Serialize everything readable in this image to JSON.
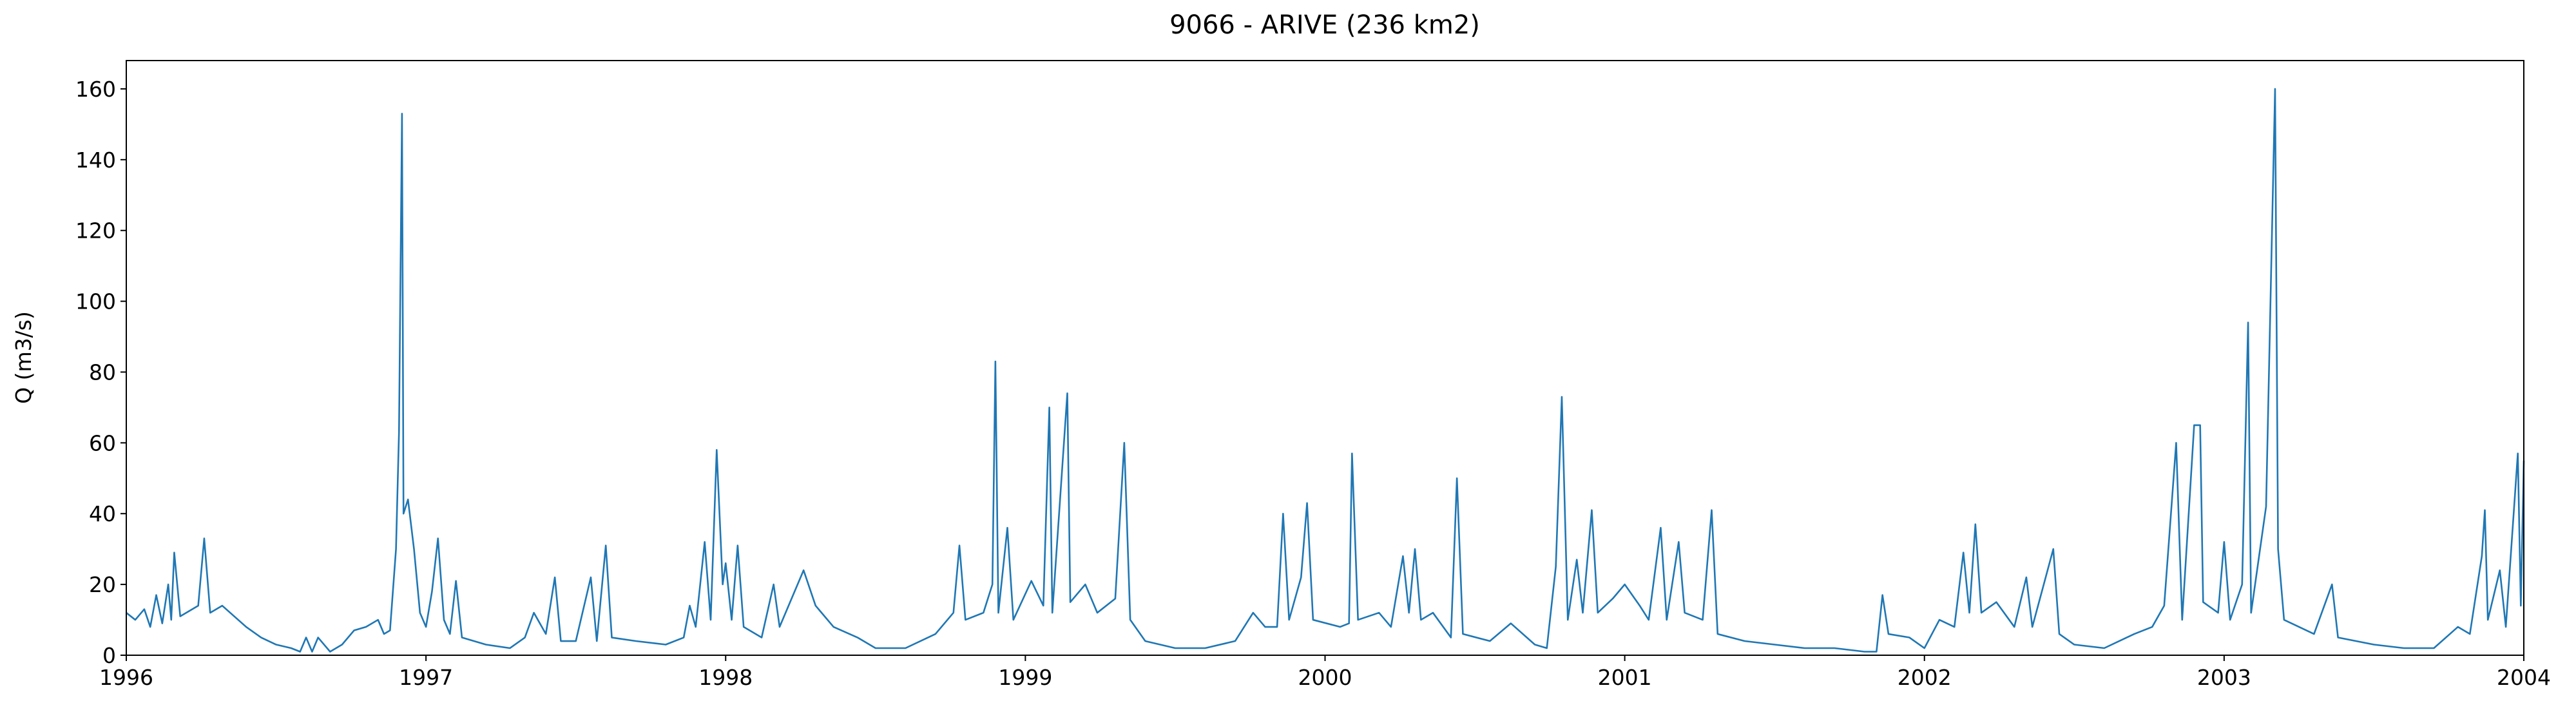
{
  "chart_data": {
    "type": "line",
    "title": "9066 - ARIVE (236 km2)",
    "y_label": "Q (m3/s)",
    "x": [
      1996.0,
      1996.03,
      1996.06,
      1996.08,
      1996.1,
      1996.12,
      1996.14,
      1996.15,
      1996.16,
      1996.18,
      1996.22,
      1996.24,
      1996.26,
      1996.28,
      1996.32,
      1996.36,
      1996.4,
      1996.45,
      1996.5,
      1996.55,
      1996.58,
      1996.6,
      1996.62,
      1996.64,
      1996.68,
      1996.72,
      1996.76,
      1996.8,
      1996.84,
      1996.86,
      1996.88,
      1996.9,
      1996.91,
      1996.92,
      1996.925,
      1996.94,
      1996.96,
      1996.98,
      1997.0,
      1997.02,
      1997.04,
      1997.06,
      1997.08,
      1997.1,
      1997.12,
      1997.2,
      1997.28,
      1997.33,
      1997.36,
      1997.4,
      1997.43,
      1997.45,
      1997.5,
      1997.55,
      1997.57,
      1997.6,
      1997.62,
      1997.7,
      1997.8,
      1997.86,
      1997.88,
      1997.9,
      1997.93,
      1997.95,
      1997.97,
      1997.99,
      1998.0,
      1998.02,
      1998.04,
      1998.06,
      1998.12,
      1998.16,
      1998.18,
      1998.26,
      1998.3,
      1998.36,
      1998.44,
      1998.5,
      1998.6,
      1998.7,
      1998.76,
      1998.78,
      1998.8,
      1998.86,
      1998.89,
      1998.9,
      1998.91,
      1998.94,
      1998.96,
      1999.02,
      1999.06,
      1999.08,
      1999.09,
      1999.14,
      1999.15,
      1999.2,
      1999.24,
      1999.3,
      1999.33,
      1999.35,
      1999.4,
      1999.5,
      1999.6,
      1999.7,
      1999.76,
      1999.8,
      1999.84,
      1999.86,
      1999.88,
      1999.92,
      1999.94,
      1999.96,
      2000.05,
      2000.08,
      2000.09,
      2000.11,
      2000.18,
      2000.22,
      2000.26,
      2000.28,
      2000.3,
      2000.32,
      2000.36,
      2000.42,
      2000.44,
      2000.46,
      2000.55,
      2000.62,
      2000.7,
      2000.74,
      2000.77,
      2000.79,
      2000.81,
      2000.84,
      2000.86,
      2000.89,
      2000.91,
      2000.96,
      2001.0,
      2001.05,
      2001.08,
      2001.12,
      2001.14,
      2001.18,
      2001.2,
      2001.26,
      2001.29,
      2001.31,
      2001.4,
      2001.5,
      2001.6,
      2001.7,
      2001.8,
      2001.84,
      2001.86,
      2001.88,
      2001.95,
      2002.0,
      2002.05,
      2002.1,
      2002.13,
      2002.15,
      2002.17,
      2002.19,
      2002.24,
      2002.3,
      2002.34,
      2002.36,
      2002.43,
      2002.45,
      2002.5,
      2002.6,
      2002.7,
      2002.76,
      2002.8,
      2002.84,
      2002.86,
      2002.9,
      2002.92,
      2002.93,
      2002.98,
      2003.0,
      2003.02,
      2003.06,
      2003.08,
      2003.09,
      2003.14,
      2003.17,
      2003.18,
      2003.2,
      2003.3,
      2003.36,
      2003.38,
      2003.5,
      2003.6,
      2003.7,
      2003.78,
      2003.82,
      2003.86,
      2003.87,
      2003.88,
      2003.92,
      2003.94,
      2003.98,
      2003.99,
      2004.0
    ],
    "series": [
      {
        "color": "#1f77b4",
        "values": [
          12,
          10,
          13,
          8,
          17,
          9,
          20,
          10,
          29,
          11,
          13,
          14,
          33,
          12,
          14,
          11,
          8,
          5,
          3,
          2,
          1,
          5,
          1,
          5,
          1,
          3,
          7,
          8,
          10,
          6,
          7,
          30,
          63,
          153,
          40,
          44,
          30,
          12,
          8,
          18,
          33,
          10,
          6,
          21,
          5,
          3,
          2,
          5,
          12,
          6,
          22,
          4,
          4,
          22,
          4,
          31,
          5,
          4,
          3,
          5,
          14,
          8,
          32,
          10,
          58,
          20,
          26,
          10,
          31,
          8,
          5,
          20,
          8,
          24,
          14,
          8,
          5,
          2,
          2,
          6,
          12,
          31,
          10,
          12,
          20,
          83,
          12,
          36,
          10,
          21,
          14,
          70,
          12,
          74,
          15,
          20,
          12,
          16,
          60,
          10,
          4,
          2,
          2,
          4,
          12,
          8,
          8,
          40,
          10,
          22,
          43,
          10,
          8,
          9,
          57,
          10,
          12,
          8,
          28,
          12,
          30,
          10,
          12,
          5,
          50,
          6,
          4,
          9,
          3,
          2,
          25,
          73,
          10,
          27,
          12,
          41,
          12,
          16,
          20,
          14,
          10,
          36,
          10,
          32,
          12,
          10,
          41,
          6,
          4,
          3,
          2,
          2,
          1,
          1,
          17,
          6,
          5,
          2,
          10,
          8,
          29,
          12,
          37,
          12,
          15,
          8,
          22,
          8,
          30,
          6,
          3,
          2,
          6,
          8,
          14,
          60,
          10,
          65,
          65,
          15,
          12,
          32,
          10,
          20,
          94,
          12,
          42,
          160,
          30,
          10,
          6,
          20,
          5,
          3,
          2,
          2,
          8,
          6,
          28,
          41,
          10,
          24,
          8,
          57,
          14,
          55
        ]
      }
    ],
    "xlim": [
      1996,
      2004
    ],
    "xticks": [
      1996,
      1997,
      1998,
      1999,
      2000,
      2001,
      2002,
      2003,
      2004
    ],
    "ylim": [
      0,
      168
    ],
    "yticks": [
      0,
      20,
      40,
      60,
      80,
      100,
      120,
      140,
      160
    ]
  }
}
